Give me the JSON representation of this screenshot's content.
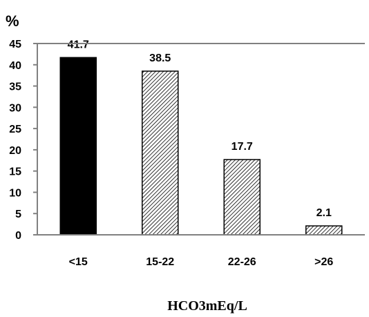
{
  "chart_data": {
    "type": "bar",
    "ylabel": "%",
    "xlabel": "HCO3mEq/L",
    "categories": [
      "<15",
      "15-22",
      "22-26",
      ">26"
    ],
    "values": [
      41.7,
      38.5,
      17.7,
      2.1
    ],
    "value_labels": [
      "41.7",
      "38.5",
      "17.7",
      "2.1"
    ],
    "ylim": [
      0,
      45
    ],
    "yticks": [
      0,
      5,
      10,
      15,
      20,
      25,
      30,
      35,
      40,
      45
    ],
    "grid": false,
    "legend": "none",
    "bar_fills": [
      "solid",
      "hatched",
      "hatched",
      "hatched"
    ],
    "colors": {
      "bar": "#000000",
      "axis": "#808080",
      "text": "#000000",
      "background": "#ffffff"
    }
  }
}
